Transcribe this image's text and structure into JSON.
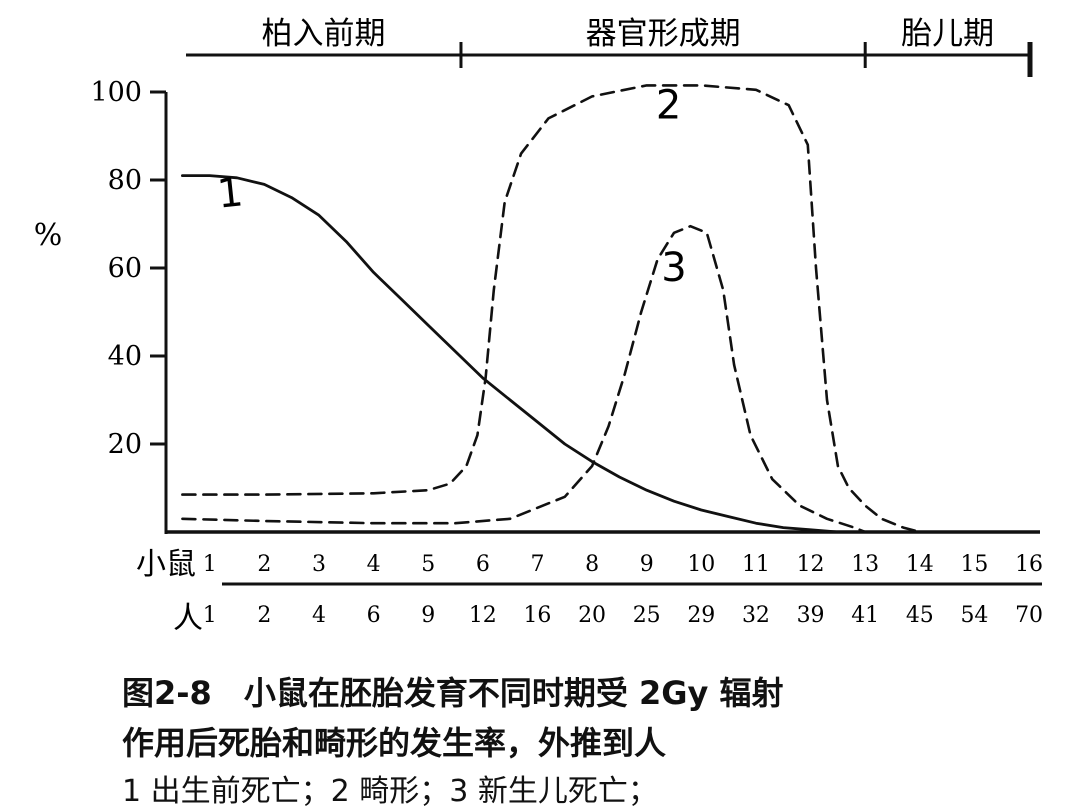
{
  "chart_data": {
    "type": "line",
    "title": "",
    "ylabel": "%",
    "ylim": [
      0,
      100
    ],
    "yticks": [
      20,
      40,
      60,
      80,
      100
    ],
    "xlim": [
      0.2,
      16.2
    ],
    "x_axis_name": "小鼠",
    "x_ticks": [
      "1",
      "2",
      "3",
      "4",
      "5",
      "6",
      "7",
      "8",
      "9",
      "10",
      "11",
      "12",
      "13",
      "14",
      "15",
      "16"
    ],
    "human_axis_name": "人",
    "human_ticks": [
      "1",
      "2",
      "4",
      "6",
      "9",
      "12",
      "16",
      "20",
      "25",
      "29",
      "32",
      "39",
      "41",
      "45",
      "54",
      "70"
    ],
    "periods": [
      {
        "label": "柏入前期",
        "start": 0.2,
        "end": 5.6
      },
      {
        "label": "器官形成期",
        "start": 5.6,
        "end": 13.0
      },
      {
        "label": "胎儿期",
        "start": 13.0,
        "end": 16.0
      }
    ],
    "series": [
      {
        "name": "1",
        "line": "solid",
        "x": [
          0.5,
          1.0,
          1.5,
          2.0,
          2.5,
          3.0,
          3.5,
          4.0,
          4.5,
          5.0,
          5.5,
          6.0,
          6.5,
          7.0,
          7.5,
          8.0,
          8.5,
          9.0,
          9.5,
          10.0,
          10.5,
          11.0,
          11.5,
          12.0,
          12.5
        ],
        "values": [
          81,
          81,
          80.5,
          79,
          76,
          72,
          66,
          59,
          53,
          47,
          41,
          35,
          30,
          25,
          20,
          16,
          12.5,
          9.5,
          7,
          5,
          3.5,
          2,
          1,
          0.5,
          0
        ]
      },
      {
        "name": "2",
        "line": "dashed",
        "x": [
          0.5,
          2.0,
          4.0,
          5.0,
          5.4,
          5.7,
          5.9,
          6.05,
          6.2,
          6.4,
          6.7,
          7.2,
          8.0,
          9.0,
          10.0,
          11.0,
          11.6,
          11.95,
          12.1,
          12.3,
          12.5,
          12.7,
          13.0,
          13.3,
          13.7,
          14.0
        ],
        "values": [
          8.5,
          8.5,
          8.8,
          9.5,
          11,
          15,
          22,
          35,
          55,
          75,
          86,
          94,
          99,
          101.5,
          101.5,
          100.5,
          97,
          88,
          60,
          30,
          15,
          10,
          6,
          3,
          1,
          0
        ]
      },
      {
        "name": "3",
        "line": "dashed",
        "x": [
          0.5,
          2.0,
          4.0,
          5.5,
          6.5,
          7.5,
          8.0,
          8.3,
          8.6,
          8.9,
          9.2,
          9.5,
          9.8,
          10.1,
          10.4,
          10.6,
          10.9,
          11.3,
          11.8,
          12.3,
          12.8,
          13.0
        ],
        "values": [
          3,
          2.5,
          2,
          2,
          3,
          8,
          15,
          24,
          36,
          50,
          62,
          68,
          69.5,
          68,
          55,
          38,
          22,
          12,
          6,
          3,
          1,
          0
        ]
      }
    ]
  },
  "caption": {
    "line1": "图2-8　小鼠在胚胎发育不同时期受 2Gy 辐射",
    "line2": "作用后死胎和畸形的发生率，外推到人",
    "line3": "1  出生前死亡；2  畸形；3  新生儿死亡；"
  }
}
